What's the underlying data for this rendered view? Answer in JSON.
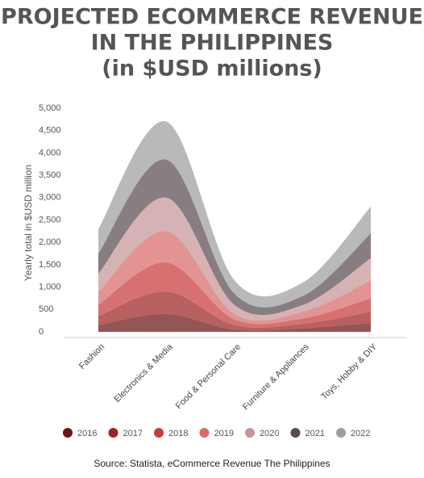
{
  "chart_data": {
    "type": "stacked-area",
    "title": [
      "PROJECTED ECOMMERCE REVENUE",
      "IN THE PHILIPPINES",
      "(in $USD millions)"
    ],
    "y_label": "Yearly total in $USD million",
    "source": "Source: Statista, eCommerce Revenue The Philippines",
    "categories": [
      "Fashion",
      "Electronics & Media",
      "Food & Personal Care",
      "Furniture & Appliances",
      "Toys, Hobby & DIY"
    ],
    "series": [
      {
        "name": "2016",
        "color": "#6b1414",
        "values": [
          150,
          400,
          50,
          80,
          200
        ]
      },
      {
        "name": "2017",
        "color": "#9b2323",
        "values": [
          200,
          500,
          100,
          100,
          250
        ]
      },
      {
        "name": "2018",
        "color": "#c83a3a",
        "values": [
          250,
          650,
          130,
          120,
          300
        ]
      },
      {
        "name": "2019",
        "color": "#d96a6a",
        "values": [
          300,
          700,
          120,
          150,
          400
        ]
      },
      {
        "name": "2020",
        "color": "#c89497",
        "values": [
          400,
          750,
          200,
          150,
          500
        ]
      },
      {
        "name": "2021",
        "color": "#5a4b4f",
        "values": [
          450,
          850,
          250,
          200,
          550
        ]
      },
      {
        "name": "2022",
        "color": "#9e9e9e",
        "values": [
          550,
          850,
          300,
          300,
          600
        ]
      }
    ],
    "ylim": [
      0,
      5000
    ],
    "yticks": [
      0,
      500,
      {
        "value": 1000,
        "label": "1,000"
      },
      {
        "value": 1500,
        "label": "1,500"
      },
      {
        "value": 2000,
        "label": "2,000"
      },
      {
        "value": 2500,
        "label": "2,500"
      },
      {
        "value": 3000,
        "label": "3,000"
      },
      {
        "value": 3500,
        "label": "3,500"
      },
      {
        "value": 4000,
        "label": "4,000"
      },
      {
        "value": 4500,
        "label": "4,500"
      },
      {
        "value": 5000,
        "label": "5,000"
      }
    ]
  }
}
